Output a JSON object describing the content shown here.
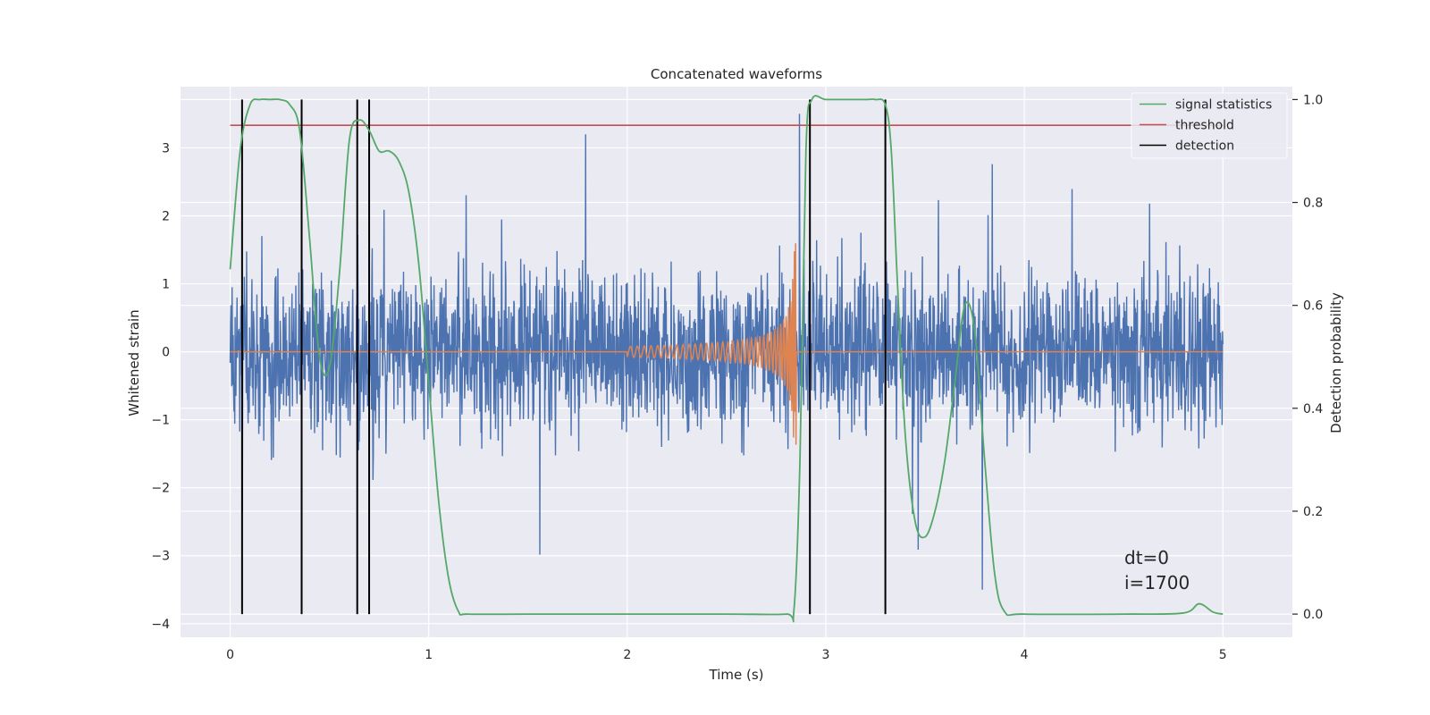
{
  "chart_data": {
    "type": "line",
    "title": "Concatenated waveforms",
    "xlabel": "Time (s)",
    "ylabel": "Whitened strain",
    "ylabel_right": "Detection probability",
    "xlim": [
      -0.25,
      5.35
    ],
    "ylim": [
      -4.2,
      3.9
    ],
    "ylim_right": [
      -0.045,
      1.025
    ],
    "x_ticks": [
      0,
      1,
      2,
      3,
      4,
      5
    ],
    "x_tick_labels": [
      "0",
      "1",
      "2",
      "3",
      "4",
      "5"
    ],
    "y_ticks": [
      -4,
      -3,
      -2,
      -1,
      0,
      1,
      2,
      3
    ],
    "y_tick_labels": [
      "−4",
      "−3",
      "−2",
      "−1",
      "0",
      "1",
      "2",
      "3"
    ],
    "y_ticks_right": [
      0.0,
      0.2,
      0.4,
      0.6,
      0.8,
      1.0
    ],
    "y_tick_labels_right": [
      "0.0",
      "0.2",
      "0.4",
      "0.6",
      "0.8",
      "1.0"
    ],
    "grid": true,
    "legend_position": "top-right",
    "series": [
      {
        "name": "signal statistics",
        "axis": "right",
        "color": "#55a868",
        "x": [
          0,
          0.05,
          0.1,
          0.15,
          0.2,
          0.25,
          0.3,
          0.35,
          0.4,
          0.45,
          0.5,
          0.55,
          0.6,
          0.65,
          0.7,
          0.75,
          0.8,
          0.85,
          0.9,
          0.95,
          1.0,
          1.05,
          1.1,
          1.15,
          1.2,
          1.5,
          2.0,
          2.5,
          2.8,
          2.84,
          2.87,
          2.9,
          2.93,
          3.0,
          3.1,
          3.2,
          3.25,
          3.3,
          3.33,
          3.36,
          3.4,
          3.45,
          3.5,
          3.55,
          3.6,
          3.65,
          3.7,
          3.75,
          3.8,
          3.85,
          3.9,
          4.0,
          4.5,
          4.8,
          4.88,
          4.95,
          5.0
        ],
        "y": [
          0.67,
          0.9,
          0.99,
          1.0,
          1.0,
          1.0,
          0.99,
          0.94,
          0.73,
          0.5,
          0.48,
          0.66,
          0.92,
          0.96,
          0.94,
          0.9,
          0.9,
          0.88,
          0.82,
          0.68,
          0.45,
          0.22,
          0.07,
          0.005,
          0.0,
          0.0,
          0.0,
          0.0,
          0.0,
          0.01,
          0.3,
          0.9,
          1.0,
          1.0,
          1.0,
          1.0,
          1.0,
          0.99,
          0.9,
          0.65,
          0.35,
          0.18,
          0.15,
          0.2,
          0.3,
          0.45,
          0.6,
          0.55,
          0.3,
          0.08,
          0.005,
          0.0,
          0.0,
          0.002,
          0.02,
          0.004,
          0.0
        ]
      },
      {
        "name": "threshold",
        "axis": "right",
        "color": "#c44e52",
        "x": [
          0,
          5
        ],
        "y": [
          0.95,
          0.95
        ]
      },
      {
        "name": "detection",
        "axis": "right",
        "color": "#000000",
        "type": "vlines",
        "x": [
          0.06,
          0.36,
          0.64,
          0.7,
          2.92,
          3.3
        ],
        "ymin": 0.0,
        "ymax": 1.0
      },
      {
        "axis": "left",
        "color": "#4c72b0",
        "type": "noise",
        "x_range": [
          0,
          5
        ],
        "spread": 0.8,
        "peak": 3.5
      },
      {
        "axis": "left",
        "color": "#dd8452",
        "type": "chirp",
        "x_range": [
          0,
          5
        ],
        "chirp_start": 2.0,
        "chirp_end": 2.85,
        "peak_amplitude": 1.6
      }
    ],
    "legend": [
      "signal statistics",
      "threshold",
      "detection"
    ],
    "annotations": [
      "dt=0",
      "i=1700"
    ]
  }
}
